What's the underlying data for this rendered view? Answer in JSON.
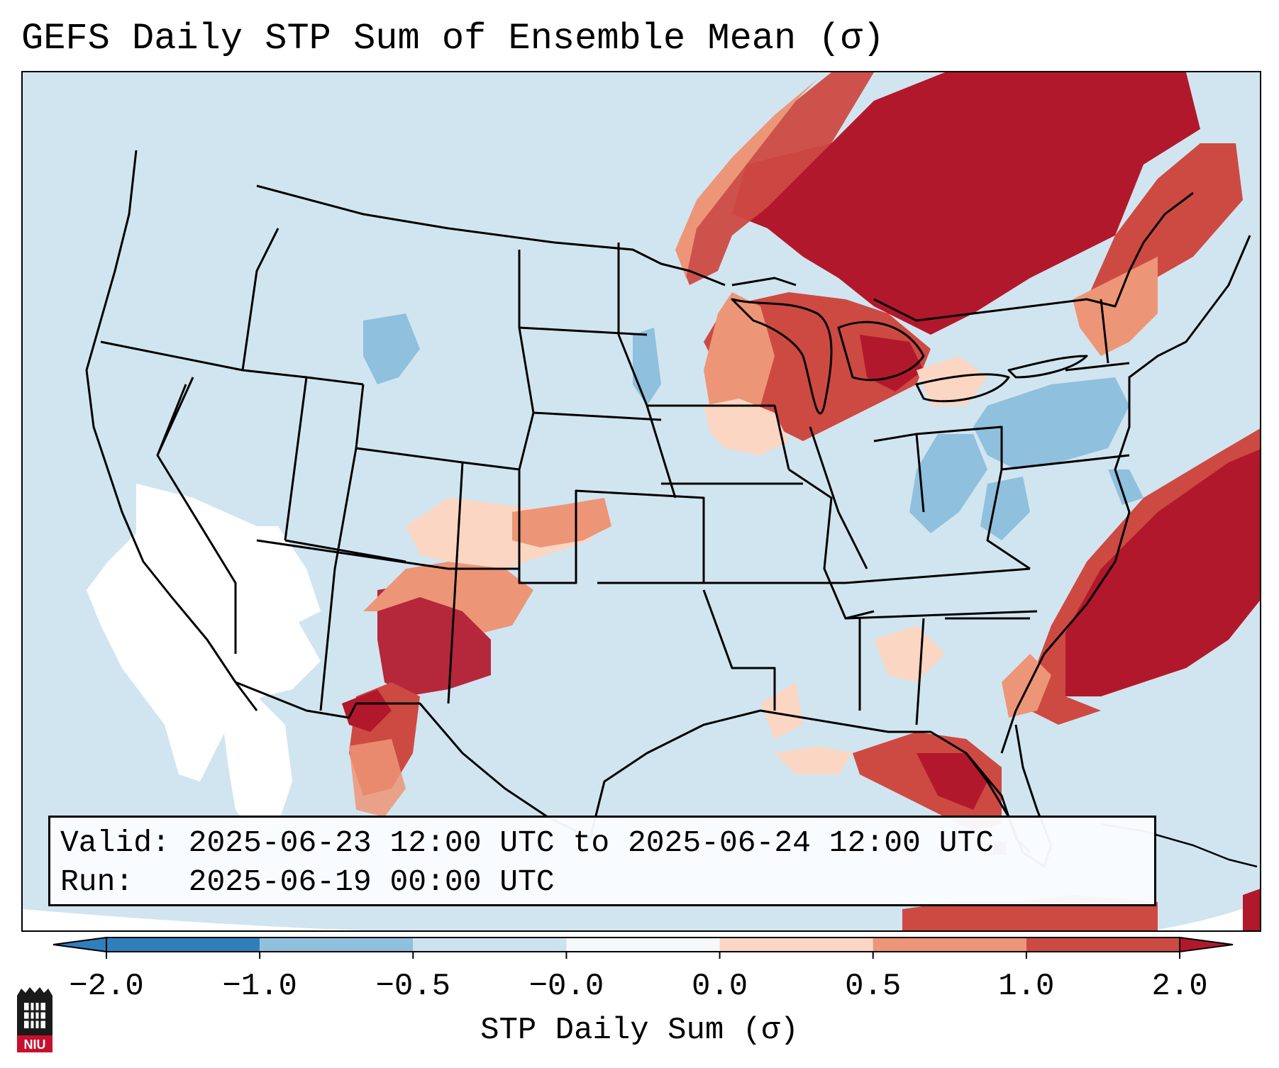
{
  "title": "GEFS Daily STP Sum of Ensemble Mean (σ)",
  "info": {
    "valid_label": "Valid:",
    "valid_value": "2025-06-23 12:00 UTC to 2025-06-24 12:00 UTC",
    "run_label": "Run:  ",
    "run_value": "2025-06-19 00:00 UTC"
  },
  "colorbar": {
    "label": "STP Daily Sum (σ)",
    "ticks": [
      "−2.0",
      "−1.0",
      "−0.5",
      "−0.0",
      "0.0",
      "0.5",
      "1.0",
      "2.0"
    ],
    "colors": [
      "#2f7fbd",
      "#8fc0dd",
      "#cde2ef",
      "#f6f8fa",
      "#fbd6c2",
      "#ed9577",
      "#cd4a42",
      "#b2182b"
    ],
    "extend": "both"
  },
  "map_legend_colors": {
    "ocean_land_base": "#d1e5f0",
    "outside_domain": "#ffffff",
    "borders": "#000000"
  },
  "logo": {
    "text": "NIU"
  }
}
